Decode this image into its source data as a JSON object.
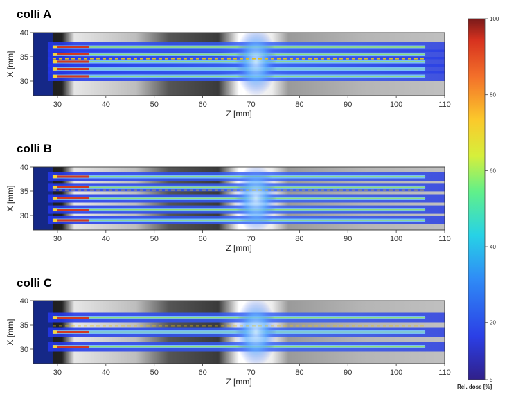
{
  "chart_data": [
    {
      "type": "heatmap",
      "title": "colli A",
      "xlabel": "Z [mm]",
      "ylabel": "X [mm]",
      "xlim": [
        25,
        110
      ],
      "ylim": [
        27,
        40
      ],
      "xticks": [
        30,
        40,
        50,
        60,
        70,
        80,
        90,
        100,
        110
      ],
      "yticks": [
        30,
        35,
        40
      ],
      "beams_x": [
        31.0,
        32.5,
        34.0,
        35.5,
        37.0
      ],
      "dashed_line_x": 34.6
    },
    {
      "type": "heatmap",
      "title": "colli B",
      "xlabel": "Z [mm]",
      "ylabel": "X [mm]",
      "xlim": [
        25,
        110
      ],
      "ylim": [
        27,
        40
      ],
      "xticks": [
        30,
        40,
        50,
        60,
        70,
        80,
        90,
        100,
        110
      ],
      "yticks": [
        30,
        35,
        40
      ],
      "beams_x": [
        29.0,
        31.2,
        33.5,
        35.8,
        38.0
      ],
      "dashed_line_x": 35.2
    },
    {
      "type": "heatmap",
      "title": "colli C",
      "xlabel": "Z [mm]",
      "ylabel": "X [mm]",
      "xlim": [
        25,
        110
      ],
      "ylim": [
        27,
        40
      ],
      "xticks": [
        30,
        40,
        50,
        60,
        70,
        80,
        90,
        100,
        110
      ],
      "yticks": [
        30,
        35,
        40
      ],
      "beams_x": [
        30.5,
        33.5,
        36.5
      ],
      "dashed_line_x": 34.8
    }
  ],
  "colorbar": {
    "label": "Rel. dose [%]",
    "min": 5,
    "max": 100,
    "ticks": [
      5,
      20,
      40,
      60,
      80,
      100
    ]
  },
  "colors": {
    "beam_core": "#d03a20",
    "beam_mid": "#7fd0ff",
    "beam_outer": "#2c3fe0",
    "dashed_line": "#e0c020",
    "ct_light": "#c8c8c8",
    "ct_dark": "#2a2a2a"
  }
}
